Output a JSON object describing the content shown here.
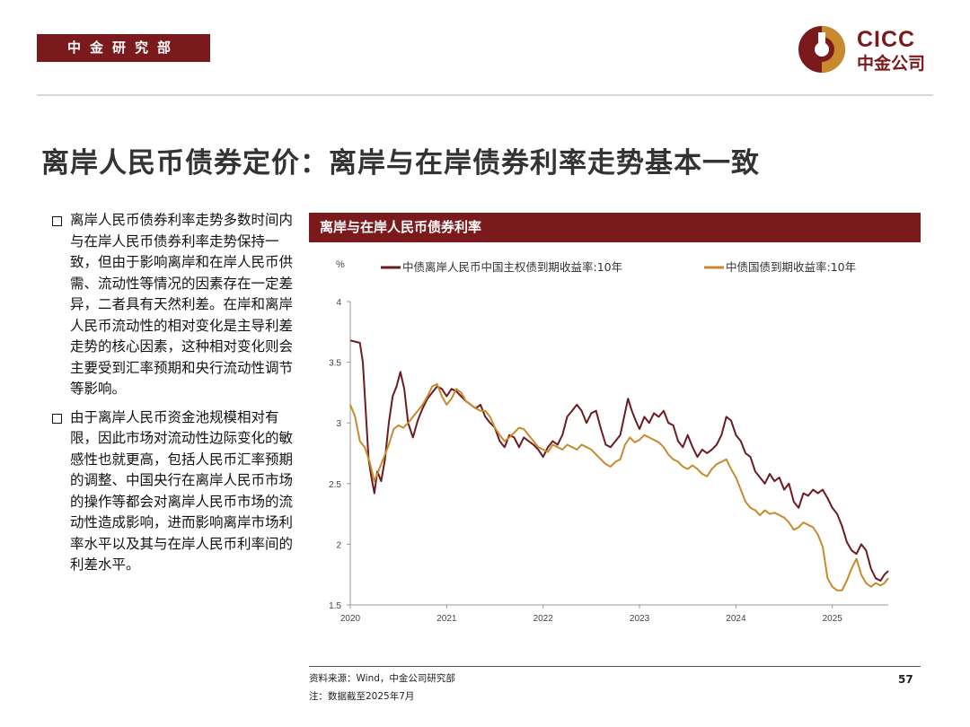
{
  "header": {
    "dept": "中金研究部",
    "logo_en": "CICC",
    "logo_cn": "中金公司"
  },
  "title": "离岸人民币债券定价：离岸与在岸债券利率走势基本一致",
  "bullets": [
    "离岸人民币债券利率走势多数时间内与在岸人民币债券利率走势保持一致，但由于影响离岸和在岸人民币供需、流动性等情况的因素存在一定差异，二者具有天然利差。在岸和离岸人民币流动性的相对变化是主导利差走势的核心因素，这种相对变化则会主要受到汇率预期和央行流动性调节等影响。",
    "由于离岸人民币资金池规模相对有限，因此市场对流动性边际变化的敏感性也就更高，包括人民币汇率预期的调整、中国央行在离岸人民币市场的操作等都会对离岸人民币市场的流动性造成影响，进而影响离岸市场利率水平以及其与在岸人民币利率间的利差水平。"
  ],
  "chart_header": "离岸与在岸人民币债券利率",
  "chart_data": {
    "type": "line",
    "ylabel": "%",
    "ylim": [
      1.5,
      4
    ],
    "yticks": [
      "1.5",
      "2",
      "2.5",
      "3",
      "3.5",
      "4"
    ],
    "xlim": [
      2020.0,
      2025.58
    ],
    "xticks": [
      "2020",
      "2021",
      "2022",
      "2023",
      "2024",
      "2025"
    ],
    "legend_position": "top",
    "series": [
      {
        "name": "中债离岸人民币中国主权债到期收益率:10年",
        "color": "#6b1c20",
        "points": [
          [
            2020.0,
            3.68
          ],
          [
            2020.05,
            3.67
          ],
          [
            2020.1,
            3.66
          ],
          [
            2020.13,
            3.5
          ],
          [
            2020.16,
            3.1
          ],
          [
            2020.19,
            2.7
          ],
          [
            2020.22,
            2.55
          ],
          [
            2020.25,
            2.42
          ],
          [
            2020.28,
            2.6
          ],
          [
            2020.32,
            2.52
          ],
          [
            2020.36,
            2.7
          ],
          [
            2020.4,
            3.0
          ],
          [
            2020.44,
            3.22
          ],
          [
            2020.48,
            3.3
          ],
          [
            2020.52,
            3.42
          ],
          [
            2020.56,
            3.28
          ],
          [
            2020.6,
            3.0
          ],
          [
            2020.65,
            2.88
          ],
          [
            2020.7,
            3.02
          ],
          [
            2020.75,
            3.12
          ],
          [
            2020.8,
            3.2
          ],
          [
            2020.85,
            3.25
          ],
          [
            2020.9,
            3.3
          ],
          [
            2020.95,
            3.28
          ],
          [
            2021.0,
            3.22
          ],
          [
            2021.05,
            3.28
          ],
          [
            2021.1,
            3.26
          ],
          [
            2021.15,
            3.22
          ],
          [
            2021.2,
            3.18
          ],
          [
            2021.25,
            3.15
          ],
          [
            2021.3,
            3.12
          ],
          [
            2021.35,
            3.15
          ],
          [
            2021.4,
            3.05
          ],
          [
            2021.45,
            3.0
          ],
          [
            2021.5,
            2.96
          ],
          [
            2021.55,
            2.85
          ],
          [
            2021.6,
            2.8
          ],
          [
            2021.65,
            2.9
          ],
          [
            2021.7,
            2.88
          ],
          [
            2021.75,
            2.8
          ],
          [
            2021.8,
            2.88
          ],
          [
            2021.85,
            2.85
          ],
          [
            2021.9,
            2.82
          ],
          [
            2021.95,
            2.78
          ],
          [
            2022.0,
            2.72
          ],
          [
            2022.05,
            2.8
          ],
          [
            2022.1,
            2.85
          ],
          [
            2022.15,
            2.82
          ],
          [
            2022.2,
            2.9
          ],
          [
            2022.25,
            3.05
          ],
          [
            2022.3,
            3.1
          ],
          [
            2022.35,
            3.15
          ],
          [
            2022.4,
            3.1
          ],
          [
            2022.45,
            3.0
          ],
          [
            2022.5,
            3.08
          ],
          [
            2022.55,
            3.1
          ],
          [
            2022.6,
            2.95
          ],
          [
            2022.65,
            2.82
          ],
          [
            2022.7,
            2.8
          ],
          [
            2022.75,
            2.85
          ],
          [
            2022.8,
            2.9
          ],
          [
            2022.84,
            3.05
          ],
          [
            2022.88,
            3.2
          ],
          [
            2022.92,
            3.1
          ],
          [
            2022.96,
            3.02
          ],
          [
            2023.0,
            2.95
          ],
          [
            2023.05,
            3.05
          ],
          [
            2023.1,
            3.0
          ],
          [
            2023.15,
            3.08
          ],
          [
            2023.2,
            3.05
          ],
          [
            2023.25,
            3.1
          ],
          [
            2023.3,
            3.0
          ],
          [
            2023.35,
            2.98
          ],
          [
            2023.4,
            2.85
          ],
          [
            2023.45,
            2.8
          ],
          [
            2023.5,
            2.9
          ],
          [
            2023.55,
            2.8
          ],
          [
            2023.6,
            2.72
          ],
          [
            2023.65,
            2.78
          ],
          [
            2023.7,
            2.75
          ],
          [
            2023.75,
            2.78
          ],
          [
            2023.8,
            2.82
          ],
          [
            2023.85,
            2.9
          ],
          [
            2023.9,
            3.05
          ],
          [
            2023.95,
            3.02
          ],
          [
            2024.0,
            2.9
          ],
          [
            2024.05,
            2.85
          ],
          [
            2024.1,
            2.75
          ],
          [
            2024.15,
            2.72
          ],
          [
            2024.2,
            2.6
          ],
          [
            2024.25,
            2.55
          ],
          [
            2024.3,
            2.5
          ],
          [
            2024.35,
            2.58
          ],
          [
            2024.4,
            2.52
          ],
          [
            2024.45,
            2.55
          ],
          [
            2024.5,
            2.45
          ],
          [
            2024.55,
            2.5
          ],
          [
            2024.6,
            2.35
          ],
          [
            2024.65,
            2.3
          ],
          [
            2024.7,
            2.42
          ],
          [
            2024.75,
            2.4
          ],
          [
            2024.8,
            2.45
          ],
          [
            2024.85,
            2.42
          ],
          [
            2024.9,
            2.45
          ],
          [
            2024.95,
            2.38
          ],
          [
            2025.0,
            2.3
          ],
          [
            2025.05,
            2.25
          ],
          [
            2025.1,
            2.15
          ],
          [
            2025.15,
            2.02
          ],
          [
            2025.2,
            1.95
          ],
          [
            2025.25,
            1.92
          ],
          [
            2025.3,
            2.0
          ],
          [
            2025.35,
            1.95
          ],
          [
            2025.4,
            1.8
          ],
          [
            2025.45,
            1.72
          ],
          [
            2025.5,
            1.7
          ],
          [
            2025.54,
            1.75
          ],
          [
            2025.58,
            1.78
          ]
        ]
      },
      {
        "name": "中债国债到期收益率:10年",
        "color": "#c98a2e",
        "points": [
          [
            2020.0,
            3.15
          ],
          [
            2020.05,
            3.05
          ],
          [
            2020.1,
            2.85
          ],
          [
            2020.15,
            2.8
          ],
          [
            2020.2,
            2.68
          ],
          [
            2020.25,
            2.52
          ],
          [
            2020.3,
            2.62
          ],
          [
            2020.35,
            2.72
          ],
          [
            2020.4,
            2.82
          ],
          [
            2020.45,
            2.95
          ],
          [
            2020.5,
            2.98
          ],
          [
            2020.55,
            2.96
          ],
          [
            2020.6,
            3.0
          ],
          [
            2020.65,
            3.05
          ],
          [
            2020.7,
            3.1
          ],
          [
            2020.75,
            3.15
          ],
          [
            2020.8,
            3.22
          ],
          [
            2020.85,
            3.3
          ],
          [
            2020.9,
            3.32
          ],
          [
            2020.95,
            3.22
          ],
          [
            2021.0,
            3.15
          ],
          [
            2021.05,
            3.2
          ],
          [
            2021.1,
            3.28
          ],
          [
            2021.15,
            3.25
          ],
          [
            2021.2,
            3.18
          ],
          [
            2021.25,
            3.15
          ],
          [
            2021.3,
            3.12
          ],
          [
            2021.35,
            3.1
          ],
          [
            2021.4,
            3.1
          ],
          [
            2021.45,
            3.05
          ],
          [
            2021.5,
            2.96
          ],
          [
            2021.55,
            2.9
          ],
          [
            2021.6,
            2.85
          ],
          [
            2021.65,
            2.88
          ],
          [
            2021.7,
            2.92
          ],
          [
            2021.75,
            2.96
          ],
          [
            2021.8,
            2.95
          ],
          [
            2021.85,
            2.9
          ],
          [
            2021.9,
            2.85
          ],
          [
            2021.95,
            2.8
          ],
          [
            2022.0,
            2.78
          ],
          [
            2022.05,
            2.76
          ],
          [
            2022.1,
            2.82
          ],
          [
            2022.15,
            2.8
          ],
          [
            2022.2,
            2.78
          ],
          [
            2022.25,
            2.82
          ],
          [
            2022.3,
            2.8
          ],
          [
            2022.35,
            2.78
          ],
          [
            2022.4,
            2.82
          ],
          [
            2022.45,
            2.8
          ],
          [
            2022.5,
            2.78
          ],
          [
            2022.55,
            2.74
          ],
          [
            2022.6,
            2.7
          ],
          [
            2022.65,
            2.66
          ],
          [
            2022.7,
            2.64
          ],
          [
            2022.75,
            2.68
          ],
          [
            2022.8,
            2.7
          ],
          [
            2022.85,
            2.82
          ],
          [
            2022.9,
            2.88
          ],
          [
            2022.95,
            2.84
          ],
          [
            2023.0,
            2.86
          ],
          [
            2023.05,
            2.9
          ],
          [
            2023.1,
            2.88
          ],
          [
            2023.15,
            2.86
          ],
          [
            2023.2,
            2.84
          ],
          [
            2023.25,
            2.8
          ],
          [
            2023.3,
            2.74
          ],
          [
            2023.35,
            2.7
          ],
          [
            2023.4,
            2.68
          ],
          [
            2023.45,
            2.64
          ],
          [
            2023.5,
            2.62
          ],
          [
            2023.55,
            2.65
          ],
          [
            2023.6,
            2.62
          ],
          [
            2023.65,
            2.58
          ],
          [
            2023.7,
            2.56
          ],
          [
            2023.75,
            2.62
          ],
          [
            2023.8,
            2.66
          ],
          [
            2023.85,
            2.68
          ],
          [
            2023.9,
            2.7
          ],
          [
            2023.95,
            2.62
          ],
          [
            2024.0,
            2.55
          ],
          [
            2024.05,
            2.45
          ],
          [
            2024.1,
            2.35
          ],
          [
            2024.15,
            2.3
          ],
          [
            2024.2,
            2.28
          ],
          [
            2024.25,
            2.24
          ],
          [
            2024.3,
            2.28
          ],
          [
            2024.35,
            2.25
          ],
          [
            2024.4,
            2.26
          ],
          [
            2024.45,
            2.24
          ],
          [
            2024.5,
            2.22
          ],
          [
            2024.55,
            2.18
          ],
          [
            2024.6,
            2.12
          ],
          [
            2024.65,
            2.14
          ],
          [
            2024.7,
            2.18
          ],
          [
            2024.75,
            2.16
          ],
          [
            2024.8,
            2.14
          ],
          [
            2024.85,
            2.08
          ],
          [
            2024.9,
            1.98
          ],
          [
            2024.95,
            1.72
          ],
          [
            2025.0,
            1.65
          ],
          [
            2025.05,
            1.62
          ],
          [
            2025.1,
            1.62
          ],
          [
            2025.15,
            1.7
          ],
          [
            2025.2,
            1.8
          ],
          [
            2025.25,
            1.88
          ],
          [
            2025.3,
            1.75
          ],
          [
            2025.35,
            1.68
          ],
          [
            2025.4,
            1.65
          ],
          [
            2025.45,
            1.68
          ],
          [
            2025.5,
            1.66
          ],
          [
            2025.54,
            1.68
          ],
          [
            2025.58,
            1.72
          ]
        ]
      }
    ]
  },
  "footer": {
    "source": "资料来源：Wind，中金公司研究部",
    "note": "注：数据截至2025年7月",
    "page": "57"
  },
  "colors": {
    "brand": "#7a1a1c",
    "gold": "#c98a2e"
  }
}
